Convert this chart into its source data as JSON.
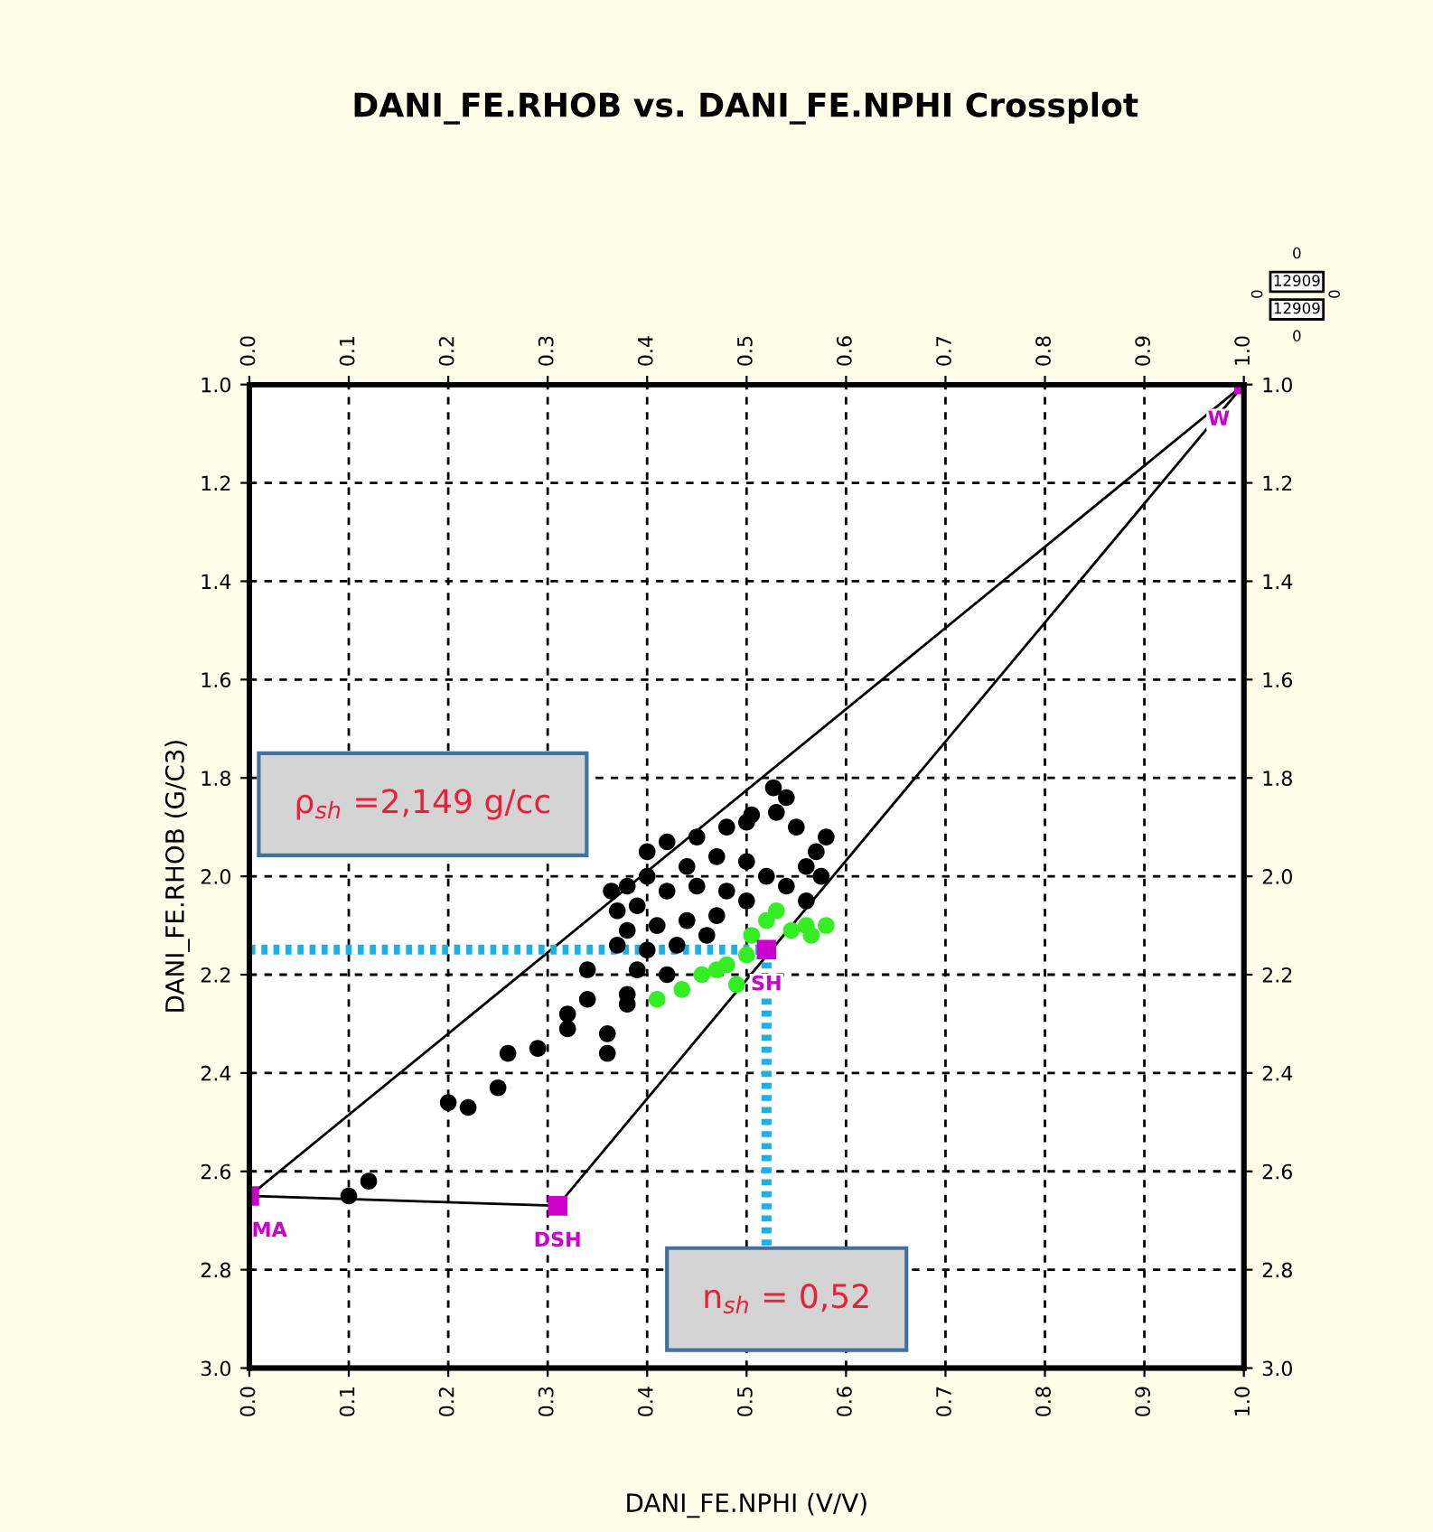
{
  "chart_data": {
    "type": "scatter",
    "title": "DANI_FE.RHOB vs. DANI_FE.NPHI Crossplot",
    "xlabel": "DANI_FE.NPHI (V/V)",
    "ylabel": "DANI_FE.RHOB (G/C3)",
    "xlim": [
      0,
      1
    ],
    "xticks": [
      {
        "value": 0,
        "label": "0.0"
      },
      0.1,
      0.2,
      0.3,
      0.4,
      0.5,
      0.6,
      0.7,
      0.8,
      0.9,
      {
        "value": 1,
        "label": "1.0"
      }
    ],
    "x2lim": [
      0,
      1
    ],
    "x2ticks": [
      {
        "value": 0,
        "label": "0.0"
      },
      0.1,
      0.2,
      0.3,
      0.4,
      0.5,
      0.6,
      0.7,
      0.8,
      0.9,
      {
        "value": 1,
        "label": "1.0"
      }
    ],
    "ylim": [
      3,
      1
    ],
    "yticks": [
      {
        "value": 1,
        "label": "1.0"
      },
      1.2,
      1.4,
      1.6,
      1.8,
      {
        "value": 2,
        "label": "2.0"
      },
      2.2,
      2.4,
      2.6,
      2.8,
      {
        "value": 3,
        "label": "3.0"
      }
    ],
    "y2lim": [
      3,
      1
    ],
    "y2ticks": [
      {
        "value": 1,
        "label": "1.0"
      },
      1.2,
      1.4,
      1.6,
      1.8,
      {
        "value": 2,
        "label": "2.0"
      },
      2.2,
      2.4,
      2.6,
      2.8,
      {
        "value": 3,
        "label": "3.0"
      }
    ],
    "grid": true,
    "legend": false,
    "series": [
      {
        "type": "scatter",
        "color": "#000000",
        "marker": "circle",
        "x": [
          0.4,
          0.42,
          0.45,
          0.48,
          0.5,
          0.505,
          0.527,
          0.54,
          0.53,
          0.55,
          0.58,
          0.57,
          0.56,
          0.575,
          0.56,
          0.54,
          0.52,
          0.5,
          0.47,
          0.44,
          0.4,
          0.38,
          0.364,
          0.37,
          0.39,
          0.42,
          0.45,
          0.48,
          0.5,
          0.47,
          0.44,
          0.41,
          0.38,
          0.37,
          0.4,
          0.43,
          0.46,
          0.39,
          0.42,
          0.38,
          0.38,
          0.34,
          0.34,
          0.32,
          0.32,
          0.36,
          0.36,
          0.29,
          0.26,
          0.25,
          0.22,
          0.2,
          0.12,
          0.1
        ],
        "values": [
          1.95,
          1.93,
          1.92,
          1.9,
          1.89,
          1.875,
          1.82,
          1.84,
          1.87,
          1.9,
          1.92,
          1.95,
          1.98,
          2.0,
          2.05,
          2.02,
          2.0,
          1.97,
          1.96,
          1.98,
          2.0,
          2.02,
          2.03,
          2.07,
          2.06,
          2.03,
          2.02,
          2.03,
          2.05,
          2.08,
          2.09,
          2.1,
          2.11,
          2.14,
          2.15,
          2.14,
          2.12,
          2.19,
          2.2,
          2.24,
          2.26,
          2.19,
          2.25,
          2.28,
          2.31,
          2.32,
          2.36,
          2.35,
          2.36,
          2.43,
          2.47,
          2.46,
          2.62,
          2.65
        ]
      },
      {
        "type": "scatter",
        "color": "#33ee22",
        "marker": "circle",
        "x": [
          0.41,
          0.435,
          0.455,
          0.47,
          0.48,
          0.49,
          0.5,
          0.505,
          0.52,
          0.53,
          0.545,
          0.56,
          0.58,
          0.565
        ],
        "values": [
          2.25,
          2.23,
          2.2,
          2.19,
          2.18,
          2.22,
          2.16,
          2.12,
          2.09,
          2.07,
          2.11,
          2.1,
          2.1,
          2.12
        ]
      },
      {
        "type": "line",
        "color": "#000000",
        "marker": "none",
        "line_style": "solid",
        "x": [
          0,
          1
        ],
        "values": [
          2.65,
          1
        ]
      },
      {
        "type": "line",
        "color": "#000000",
        "marker": "none",
        "line_style": "solid",
        "x": [
          0.31,
          1
        ],
        "values": [
          2.67,
          1
        ]
      },
      {
        "type": "line",
        "color": "#000000",
        "marker": "none",
        "line_style": "solid",
        "x": [
          0,
          0.31
        ],
        "values": [
          2.65,
          2.67
        ]
      },
      {
        "type": "line",
        "color": "#1ab0e8",
        "marker": "none",
        "line_style": "dotted",
        "x": [
          0,
          0.52,
          0.52
        ],
        "values": [
          2.149,
          2.149,
          2.76
        ]
      },
      {
        "type": "scatter",
        "color": "#cc00cc",
        "marker": "square",
        "x": [
          0,
          0.31,
          0.52,
          1
        ],
        "values": [
          2.65,
          2.67,
          2.149,
          1
        ]
      }
    ],
    "annotations": [
      {
        "text": "MA",
        "x": 0,
        "y": 2.65
      },
      {
        "text": "DSH",
        "x": 0.31,
        "y": 2.67
      },
      {
        "text": "SH",
        "x": 0.52,
        "y": 2.149
      },
      {
        "text": "W",
        "x": 1,
        "y": 1
      },
      "ρ$_{sh}$ =2,149 g/cc",
      "n$_{sh}$ = 0,52",
      "12909",
      "12909",
      "0",
      "0",
      "0",
      "0"
    ]
  }
}
